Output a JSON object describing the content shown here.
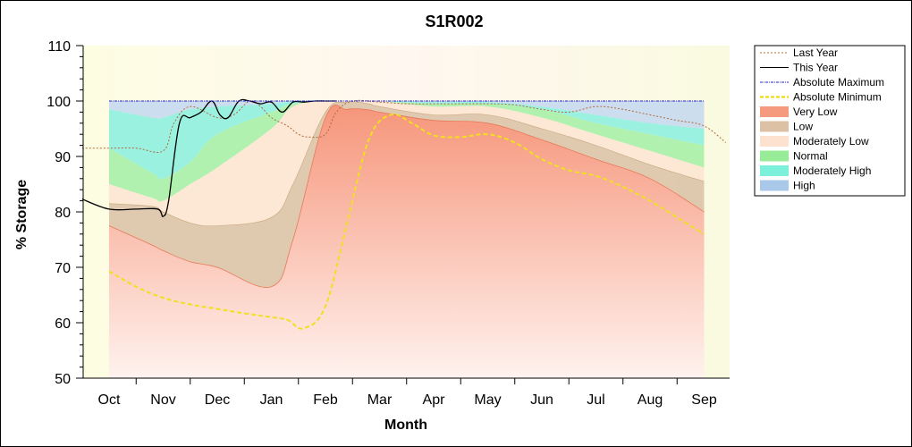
{
  "chart_data": {
    "type": "area",
    "title": "S1R002",
    "xlabel": "Month",
    "ylabel": "% Storage",
    "ylim": [
      50,
      110
    ],
    "yticks": [
      50,
      60,
      70,
      80,
      90,
      100,
      110
    ],
    "categories": [
      "Oct",
      "Nov",
      "Dec",
      "Jan",
      "Feb",
      "Mar",
      "Apr",
      "May",
      "Jun",
      "Jul",
      "Aug",
      "Sep"
    ],
    "legend_position": "right",
    "band_boundaries": {
      "months": [
        0,
        0.8,
        1,
        1.5,
        2,
        3,
        3.4,
        4,
        4.4,
        4.8,
        5,
        6,
        7,
        8,
        9,
        10,
        11
      ],
      "very_low_top": [
        77.5,
        74,
        73,
        71,
        70,
        66.5,
        75,
        97,
        98.5,
        98.4,
        98,
        96.5,
        96,
        93,
        89.5,
        86,
        80
      ],
      "low_top": [
        81.5,
        81,
        80,
        78,
        77.5,
        79,
        85,
        98,
        99.8,
        99.5,
        99,
        97.5,
        97.5,
        95,
        92,
        88.5,
        85.5
      ],
      "moderately_low_top": [
        85,
        82.5,
        82,
        85,
        88,
        95,
        99,
        100,
        100,
        100,
        100,
        99,
        99,
        97,
        94,
        91,
        88
      ],
      "normal_top": [
        91.5,
        87,
        86,
        89,
        94,
        98,
        99.5,
        100,
        100,
        100,
        100,
        99.5,
        99.5,
        98.5,
        96,
        94,
        92
      ],
      "moderately_high_top": [
        98.5,
        97,
        97,
        98.5,
        99,
        99.5,
        100,
        100,
        100,
        100,
        100,
        99.8,
        99.8,
        99,
        97.5,
        96,
        95
      ],
      "high_top": [
        100,
        100,
        100,
        100,
        100,
        100,
        100,
        100,
        100,
        100,
        100,
        100,
        100,
        100,
        100,
        100,
        100
      ]
    },
    "series": [
      {
        "name": "Last Year",
        "color": "#b06a3a",
        "style": "dotted",
        "x": [
          -0.5,
          0,
          0.5,
          1,
          1.2,
          1.5,
          2,
          2.3,
          2.6,
          2.8,
          3,
          3.3,
          3.5,
          3.7,
          4,
          4.2,
          4.5,
          5,
          5.5,
          6,
          6.5,
          7,
          7.5,
          8,
          8.5,
          9,
          9.5,
          10,
          10.5,
          11,
          11.4
        ],
        "y": [
          91.5,
          91.5,
          91.5,
          91,
          96,
          99,
          97,
          97.5,
          100,
          99,
          97,
          95.5,
          94,
          93.5,
          94,
          98,
          100,
          99.8,
          99.5,
          99.5,
          99.5,
          99.5,
          99.3,
          98.5,
          98,
          99,
          98.5,
          97.5,
          96.5,
          95.5,
          92.5
        ]
      },
      {
        "name": "This Year",
        "color": "#000000",
        "style": "solid",
        "x": [
          -0.5,
          0,
          0.5,
          0.9,
          1.0,
          1.1,
          1.3,
          1.5,
          1.7,
          1.9,
          2.05,
          2.2,
          2.4,
          2.6,
          2.8,
          3.0,
          3.2,
          3.4,
          3.6,
          3.8,
          4.0,
          4.2
        ],
        "y": [
          82.3,
          80.5,
          80.5,
          80.5,
          79.2,
          82,
          96,
          97,
          98,
          100,
          97.5,
          97,
          100,
          100,
          99.5,
          99.8,
          98,
          99.8,
          99.8,
          100,
          100,
          100
        ]
      },
      {
        "name": "Absolute Maximum",
        "color": "#2020cc",
        "style": "dashdot",
        "x": [
          0,
          11
        ],
        "y": [
          100,
          100
        ]
      },
      {
        "name": "Absolute Minimum",
        "color": "#f0e020",
        "style": "dashed",
        "x": [
          0,
          0.5,
          1,
          1.5,
          2,
          2.5,
          3,
          3.3,
          3.6,
          4,
          4.4,
          4.8,
          5.2,
          5.6,
          6,
          6.5,
          7,
          7.5,
          8,
          8.5,
          9,
          9.5,
          10,
          10.5,
          11
        ],
        "y": [
          69.3,
          66.5,
          64.5,
          63.3,
          62.5,
          61.7,
          61,
          60.5,
          59,
          63,
          78,
          93,
          97.5,
          96,
          93.8,
          93.5,
          94,
          92.5,
          89.5,
          87.5,
          86.5,
          84.5,
          82,
          79,
          76
        ]
      }
    ],
    "legend": [
      {
        "label": "Last Year",
        "kind": "line",
        "color": "#b06a3a",
        "dash": "2,2"
      },
      {
        "label": "This Year",
        "kind": "line",
        "color": "#000000",
        "dash": ""
      },
      {
        "label": "Absolute Maximum",
        "kind": "line",
        "color": "#2020cc",
        "dash": "3,1,1,1"
      },
      {
        "label": "Absolute Minimum",
        "kind": "line",
        "color": "#e8d800",
        "dash": "4,2"
      },
      {
        "label": "Very Low",
        "kind": "fill",
        "color": "#f59a7e"
      },
      {
        "label": "Low",
        "kind": "fill",
        "color": "#dcc1a4"
      },
      {
        "label": "Moderately Low",
        "kind": "fill",
        "color": "#fde3cf"
      },
      {
        "label": "Normal",
        "kind": "fill",
        "color": "#98ec98"
      },
      {
        "label": "Moderately High",
        "kind": "fill",
        "color": "#7df0dc"
      },
      {
        "label": "High",
        "kind": "fill",
        "color": "#a9c8ea"
      }
    ]
  }
}
